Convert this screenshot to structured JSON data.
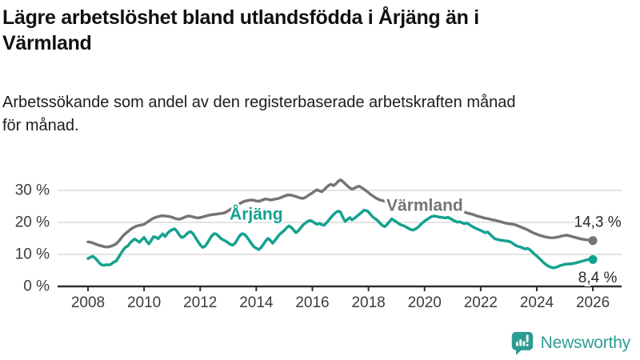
{
  "header": {
    "title_lines": [
      "Lägre arbetslöshet bland utlandsfödda i Årjäng än i",
      "Värmland"
    ],
    "subtitle_lines": [
      "Arbetssökande som andel av den registerbaserade arbetskraften månad",
      "för månad."
    ]
  },
  "footer": {
    "brand": "Newsworthy"
  },
  "colors": {
    "accent_teal": "#14a28e",
    "series_gray": "#757575",
    "logo_teal": "#2e9c92",
    "grid": "#dadada",
    "axis": "#2e2e2e",
    "tick_text": "#3c3c3c"
  },
  "chart_data": {
    "type": "line",
    "x_start": 2008,
    "x_frequency": "monthly",
    "xlim": [
      2008,
      2026.08
    ],
    "ylim": [
      0,
      35
    ],
    "grid": true,
    "x_ticks": [
      {
        "value": 2008,
        "label": "2008"
      },
      {
        "value": 2010,
        "label": "2010"
      },
      {
        "value": 2012,
        "label": "2012"
      },
      {
        "value": 2014,
        "label": "2014"
      },
      {
        "value": 2016,
        "label": "2016"
      },
      {
        "value": 2018,
        "label": "2018"
      },
      {
        "value": 2020,
        "label": "2020"
      },
      {
        "value": 2022,
        "label": "2022"
      },
      {
        "value": 2024,
        "label": "2024"
      },
      {
        "value": 2026,
        "label": "2026"
      }
    ],
    "y_ticks": [
      {
        "value": 0,
        "label": "0 %"
      },
      {
        "value": 10,
        "label": "10 %"
      },
      {
        "value": 20,
        "label": "20 %"
      },
      {
        "value": 30,
        "label": "30 %"
      }
    ],
    "series": [
      {
        "id": "varmland",
        "name": "Värmland",
        "color": "#757575",
        "label_x": 2018.64,
        "label_y": 25.3,
        "end_label": "14,3 %",
        "end_label_position": "above",
        "values": [
          13.9,
          13.8,
          13.6,
          13.3,
          13.0,
          12.8,
          12.6,
          12.4,
          12.3,
          12.4,
          12.6,
          12.9,
          13.3,
          14.0,
          14.9,
          15.8,
          16.5,
          17.1,
          17.7,
          18.2,
          18.6,
          18.9,
          19.1,
          19.2,
          19.4,
          19.9,
          20.4,
          20.9,
          21.3,
          21.6,
          21.8,
          22.0,
          22.1,
          22.0,
          21.9,
          21.8,
          21.6,
          21.3,
          21.1,
          21.0,
          21.2,
          21.5,
          21.8,
          22.0,
          21.9,
          21.7,
          21.5,
          21.4,
          21.5,
          21.7,
          21.9,
          22.1,
          22.3,
          22.4,
          22.5,
          22.6,
          22.7,
          22.8,
          22.9,
          23.2,
          23.6,
          24.1,
          24.6,
          25.1,
          25.5,
          25.9,
          26.3,
          26.6,
          26.8,
          26.9,
          27.0,
          26.9,
          26.7,
          26.6,
          26.8,
          27.1,
          27.3,
          27.2,
          27.0,
          27.1,
          27.3,
          27.4,
          27.6,
          27.9,
          28.2,
          28.5,
          28.6,
          28.5,
          28.3,
          28.1,
          27.8,
          27.6,
          27.5,
          27.8,
          28.3,
          28.8,
          29.2,
          29.8,
          30.2,
          29.9,
          29.6,
          30.2,
          30.9,
          31.6,
          31.9,
          31.5,
          32.0,
          32.8,
          33.3,
          32.8,
          32.1,
          31.4,
          30.8,
          30.4,
          30.7,
          31.1,
          31.3,
          30.9,
          30.4,
          29.9,
          29.3,
          28.7,
          28.2,
          27.7,
          27.3,
          27.0,
          26.8,
          26.6,
          26.4,
          26.2,
          26.0,
          25.9,
          25.7,
          25.5,
          25.3,
          25.1,
          24.9,
          24.8,
          24.7,
          24.6,
          24.6,
          24.5,
          24.5,
          24.6,
          24.6,
          24.7,
          24.9,
          25.1,
          25.2,
          25.2,
          25.1,
          25.0,
          24.9,
          24.8,
          24.6,
          24.4,
          24.2,
          24.0,
          23.8,
          23.6,
          23.4,
          23.2,
          23.0,
          22.8,
          22.6,
          22.4,
          22.1,
          21.9,
          21.7,
          21.5,
          21.3,
          21.2,
          21.0,
          20.8,
          20.7,
          20.5,
          20.3,
          20.1,
          19.9,
          19.7,
          19.6,
          19.5,
          19.4,
          19.2,
          18.9,
          18.6,
          18.3,
          18.0,
          17.7,
          17.3,
          16.9,
          16.6,
          16.3,
          16.0,
          15.8,
          15.6,
          15.4,
          15.3,
          15.2,
          15.2,
          15.3,
          15.4,
          15.6,
          15.8,
          15.9,
          16.0,
          15.8,
          15.6,
          15.4,
          15.2,
          15.0,
          14.8,
          14.7,
          14.6,
          14.5,
          14.4,
          14.3
        ]
      },
      {
        "id": "arjang",
        "name": "Årjäng",
        "color": "#14a28e",
        "label_x": 2013.05,
        "label_y": 22.5,
        "end_label": "8,4 %",
        "end_label_position": "below",
        "values": [
          8.7,
          9.1,
          9.4,
          8.9,
          8.1,
          7.2,
          6.7,
          6.6,
          6.8,
          6.7,
          7.0,
          7.6,
          7.9,
          9.0,
          10.2,
          11.3,
          12.2,
          12.6,
          13.6,
          14.3,
          14.8,
          14.3,
          13.8,
          14.6,
          15.3,
          14.2,
          13.3,
          14.3,
          15.5,
          15.4,
          14.9,
          15.7,
          16.4,
          15.6,
          16.6,
          17.3,
          17.7,
          18.0,
          17.3,
          16.2,
          15.3,
          15.5,
          16.2,
          16.9,
          17.1,
          16.4,
          15.2,
          14.1,
          13.0,
          12.2,
          12.5,
          13.5,
          14.7,
          15.8,
          16.5,
          16.3,
          15.6,
          14.9,
          14.5,
          14.1,
          13.6,
          13.1,
          12.9,
          13.6,
          14.8,
          15.9,
          16.5,
          16.2,
          15.4,
          14.4,
          13.3,
          12.4,
          11.9,
          11.5,
          12.1,
          13.1,
          14.2,
          15.0,
          14.4,
          13.5,
          14.4,
          15.4,
          16.3,
          16.9,
          17.5,
          18.3,
          18.9,
          18.4,
          17.6,
          16.8,
          17.4,
          18.3,
          19.2,
          19.8,
          20.3,
          20.6,
          20.3,
          19.8,
          19.4,
          19.7,
          19.3,
          19.1,
          19.8,
          20.7,
          21.6,
          22.4,
          23.1,
          23.5,
          23.3,
          21.6,
          20.3,
          20.9,
          21.5,
          20.8,
          21.3,
          21.9,
          22.5,
          23.1,
          23.8,
          23.7,
          23.3,
          22.4,
          21.6,
          21.1,
          20.5,
          19.7,
          19.0,
          18.7,
          19.4,
          20.3,
          21.1,
          20.6,
          20.1,
          19.6,
          19.2,
          19.0,
          18.6,
          18.2,
          17.8,
          17.6,
          17.9,
          18.4,
          19.1,
          19.8,
          20.4,
          20.9,
          21.4,
          21.8,
          22.0,
          21.9,
          21.7,
          21.6,
          21.5,
          21.4,
          21.6,
          21.2,
          20.8,
          20.4,
          20.1,
          20.2,
          19.9,
          19.6,
          19.8,
          19.4,
          18.9,
          18.5,
          18.1,
          17.8,
          17.5,
          17.1,
          16.8,
          17.0,
          16.3,
          15.6,
          14.9,
          14.7,
          14.5,
          14.4,
          14.3,
          14.2,
          14.1,
          13.8,
          13.3,
          12.8,
          12.5,
          12.3,
          12.0,
          11.7,
          11.9,
          11.5,
          10.8,
          10.1,
          9.5,
          8.8,
          8.1,
          7.4,
          6.8,
          6.3,
          6.0,
          5.8,
          5.9,
          6.2,
          6.5,
          6.7,
          6.9,
          7.0,
          7.0,
          7.1,
          7.2,
          7.4,
          7.6,
          7.8,
          8.0,
          8.2,
          8.4,
          8.5,
          8.4
        ]
      }
    ]
  }
}
